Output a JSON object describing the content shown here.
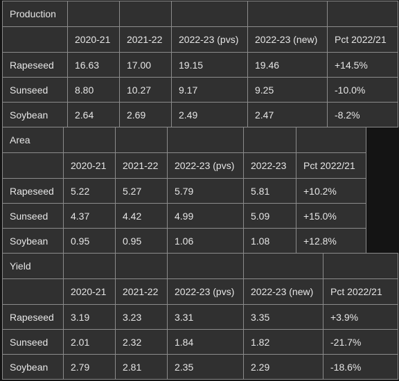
{
  "tables": [
    {
      "title": "Production",
      "columns": [
        "2020-21",
        "2021-22",
        "2022-23 (pvs)",
        "2022-23 (new)",
        "Pct 2022/21"
      ],
      "rows": [
        {
          "label": "Rapeseed",
          "values": [
            "16.63",
            "17.00",
            "19.15",
            "19.46",
            "+14.5%"
          ]
        },
        {
          "label": "Sunseed",
          "values": [
            "8.80",
            "10.27",
            "9.17",
            "9.25",
            "-10.0%"
          ]
        },
        {
          "label": "Soybean",
          "values": [
            "2.64",
            "2.69",
            "2.49",
            "2.47",
            "-8.2%"
          ]
        }
      ]
    },
    {
      "title": "Area",
      "columns": [
        "2020-21",
        "2021-22",
        "2022-23 (pvs)",
        "2022-23",
        "Pct 2022/21"
      ],
      "rows": [
        {
          "label": "Rapeseed",
          "values": [
            "5.22",
            "5.27",
            "5.79",
            "5.81",
            "+10.2%"
          ]
        },
        {
          "label": "Sunseed",
          "values": [
            "4.37",
            "4.42",
            "4.99",
            "5.09",
            "+15.0%"
          ]
        },
        {
          "label": "Soybean",
          "values": [
            "0.95",
            "0.95",
            "1.06",
            "1.08",
            "+12.8%"
          ]
        }
      ]
    },
    {
      "title": "Yield",
      "columns": [
        "2020-21",
        "2021-22",
        "2022-23 (pvs)",
        "2022-23 (new)",
        "Pct 2022/21"
      ],
      "rows": [
        {
          "label": "Rapeseed",
          "values": [
            "3.19",
            "3.23",
            "3.31",
            "3.35",
            "+3.9%"
          ]
        },
        {
          "label": "Sunseed",
          "values": [
            "2.01",
            "2.32",
            "1.84",
            "1.82",
            "-21.7%"
          ]
        },
        {
          "label": "Soybean",
          "values": [
            "2.79",
            "2.81",
            "2.35",
            "2.29",
            "-18.6%"
          ]
        }
      ]
    }
  ]
}
